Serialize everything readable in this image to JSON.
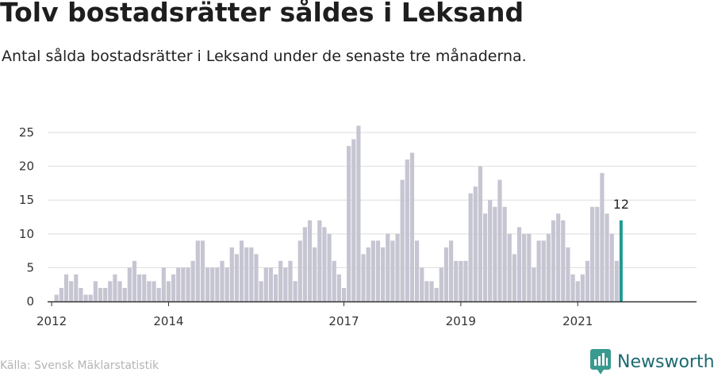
{
  "header": {
    "title": "Tolv bostadsrätter såldes i Leksand",
    "subtitle": "Antal sålda bostadsrätter i Leksand under de senaste tre månaderna."
  },
  "footer": {
    "source": "Källa: Svensk Mäklarstatistik",
    "brand": "Newsworthy"
  },
  "colors": {
    "bar": "#c6c5d2",
    "highlight": "#1f9a92",
    "grid": "#dddddd",
    "axis": "#333333",
    "brand": "#1b6a72"
  },
  "chart_data": {
    "type": "bar",
    "title": "Tolv bostadsrätter såldes i Leksand",
    "xlabel": "",
    "ylabel": "",
    "ylim": [
      0,
      27
    ],
    "yticks": [
      0,
      5,
      10,
      15,
      20,
      25
    ],
    "grid": true,
    "start_month": "2012-01",
    "x_tick_labels": [
      {
        "label": "2012",
        "month": "2012-01"
      },
      {
        "label": "2014",
        "month": "2014-01"
      },
      {
        "label": "2017",
        "month": "2017-01"
      },
      {
        "label": "2019",
        "month": "2019-01"
      },
      {
        "label": "2021",
        "month": "2021-01"
      }
    ],
    "values": [
      0,
      1,
      2,
      4,
      3,
      4,
      2,
      1,
      1,
      3,
      2,
      2,
      3,
      4,
      3,
      2,
      5,
      6,
      4,
      4,
      3,
      3,
      2,
      5,
      3,
      4,
      5,
      5,
      5,
      6,
      9,
      9,
      5,
      5,
      5,
      6,
      5,
      8,
      7,
      9,
      8,
      8,
      7,
      3,
      5,
      5,
      4,
      6,
      5,
      6,
      3,
      9,
      11,
      12,
      8,
      12,
      11,
      10,
      6,
      4,
      2,
      23,
      24,
      26,
      7,
      8,
      9,
      9,
      8,
      10,
      9,
      10,
      18,
      21,
      22,
      9,
      5,
      3,
      3,
      2,
      5,
      8,
      9,
      6,
      6,
      6,
      16,
      17,
      20,
      13,
      15,
      14,
      18,
      14,
      10,
      7,
      11,
      10,
      10,
      5,
      9,
      9,
      10,
      12,
      13,
      12,
      8,
      4,
      3,
      4,
      6,
      14,
      14,
      19,
      13,
      10,
      6,
      12
    ],
    "highlight_label": "12"
  }
}
